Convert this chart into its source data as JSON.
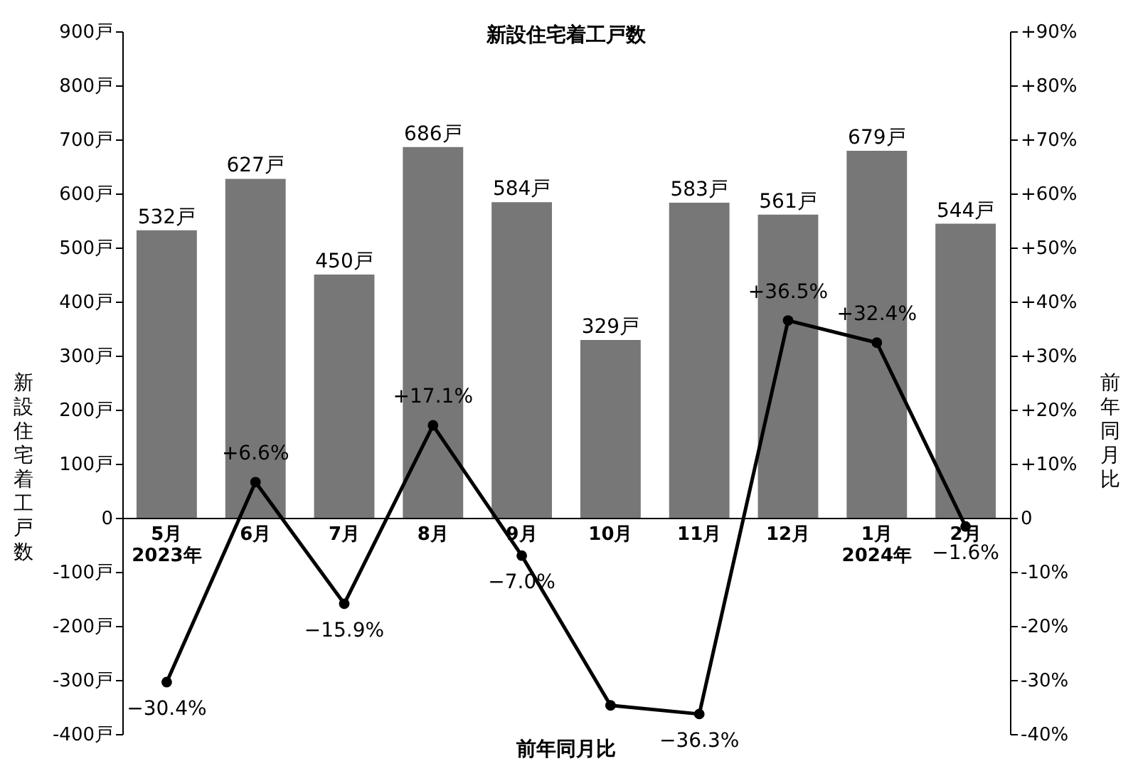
{
  "chart_data": {
    "type": "bar",
    "title": "新設住宅着工戸数",
    "ylabel": "新設住宅着工戸数",
    "y2label": "前年同月比",
    "xlabel": "前年同月比",
    "categories": [
      "5月\n2023年",
      "6月",
      "7月",
      "8月",
      "9月",
      "10月",
      "11月",
      "12月",
      "1月\n2024年",
      "2月"
    ],
    "series": [
      {
        "color": "#777777",
        "values": [
          532,
          627,
          450,
          686,
          584,
          329,
          583,
          561,
          679,
          544
        ],
        "value_labels": [
          "532戸",
          "627戸",
          "450戸",
          "686戸",
          "584戸",
          "329戸",
          "583戸",
          "561戸",
          "679戸",
          "544戸"
        ]
      },
      {
        "type": "line",
        "axis": "y2",
        "color": "#000000",
        "values": [
          -30.4,
          6.6,
          -15.9,
          17.1,
          -7.0,
          -34.7,
          -36.3,
          36.5,
          32.4,
          -1.6
        ],
        "value_labels": [
          "−30.4%",
          "+6.6%",
          "−15.9%",
          "+17.1%",
          "−7.0%",
          null,
          "−36.3%",
          "+36.5%",
          "+32.4%",
          "−1.6%"
        ]
      }
    ],
    "ylim": [
      -400,
      900
    ],
    "yticks": [
      {
        "value": -400,
        "label": "-400戸"
      },
      {
        "value": -300,
        "label": "-300戸"
      },
      {
        "value": -200,
        "label": "-200戸"
      },
      {
        "value": -100,
        "label": "-100戸"
      },
      0,
      {
        "value": 100,
        "label": "100戸"
      },
      {
        "value": 200,
        "label": "200戸"
      },
      {
        "value": 300,
        "label": "300戸"
      },
      {
        "value": 400,
        "label": "400戸"
      },
      {
        "value": 500,
        "label": "500戸"
      },
      {
        "value": 600,
        "label": "600戸"
      },
      {
        "value": 700,
        "label": "700戸"
      },
      {
        "value": 800,
        "label": "800戸"
      },
      {
        "value": 900,
        "label": "900戸"
      }
    ],
    "y2lim": [
      -40,
      90
    ],
    "y2ticks": [
      {
        "value": -40,
        "label": "-40%"
      },
      {
        "value": -30,
        "label": "-30%"
      },
      {
        "value": -20,
        "label": "-20%"
      },
      {
        "value": -10,
        "label": "-10%"
      },
      0,
      {
        "value": 10,
        "label": "+10%"
      },
      {
        "value": 20,
        "label": "+20%"
      },
      {
        "value": 30,
        "label": "+30%"
      },
      {
        "value": 40,
        "label": "+40%"
      },
      {
        "value": 50,
        "label": "+50%"
      },
      {
        "value": 60,
        "label": "+60%"
      },
      {
        "value": 70,
        "label": "+70%"
      },
      {
        "value": 80,
        "label": "+80%"
      },
      {
        "value": 90,
        "label": "+90%"
      }
    ],
    "marker": "circle",
    "line_style": "solid",
    "grid": false
  }
}
